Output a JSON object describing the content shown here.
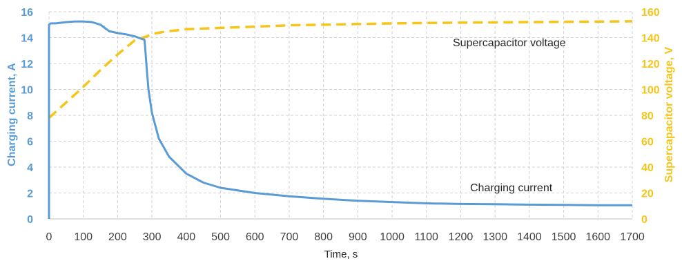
{
  "chart_data": {
    "type": "line",
    "xlabel": "Time, s",
    "ylabel_left": "Charging current, A",
    "ylabel_right": "Supercapacitor voltage, V",
    "xlim": [
      0,
      1700
    ],
    "ylim_left": [
      0,
      16
    ],
    "ylim_right": [
      0,
      160
    ],
    "x_ticks": [
      "0",
      "100",
      "200",
      "300",
      "400",
      "500",
      "600",
      "700",
      "800",
      "900",
      "1000",
      "1100",
      "1200",
      "1300",
      "1400",
      "1500",
      "1600",
      "1700"
    ],
    "y_left_ticks": [
      "0",
      "2",
      "4",
      "6",
      "8",
      "10",
      "12",
      "14",
      "16"
    ],
    "y_right_ticks": [
      "0",
      "20",
      "40",
      "60",
      "80",
      "100",
      "120",
      "140",
      "160"
    ],
    "grid": "dashed gridlines",
    "annotations": [
      "Supercapacitor voltage",
      "Charging current"
    ],
    "colors": {
      "current": "#5b9bd5",
      "voltage": "#f5c518"
    },
    "series": [
      {
        "axis": "left",
        "style": "solid",
        "x": [
          0,
          0,
          5,
          20,
          50,
          75,
          100,
          125,
          150,
          160,
          175,
          200,
          225,
          250,
          270,
          278,
          280,
          285,
          290,
          300,
          320,
          350,
          400,
          450,
          500,
          600,
          700,
          800,
          900,
          1000,
          1100,
          1200,
          1300,
          1400,
          1500,
          1600,
          1700
        ],
        "y": [
          0,
          15.0,
          15.1,
          15.1,
          15.2,
          15.25,
          15.25,
          15.2,
          15.0,
          14.8,
          14.5,
          14.35,
          14.25,
          14.1,
          13.9,
          13.85,
          13.3,
          11.5,
          10.0,
          8.2,
          6.2,
          4.8,
          3.5,
          2.8,
          2.4,
          2.0,
          1.75,
          1.55,
          1.4,
          1.3,
          1.2,
          1.15,
          1.13,
          1.1,
          1.08,
          1.05,
          1.05
        ]
      },
      {
        "axis": "right",
        "style": "dashed",
        "x": [
          0,
          50,
          100,
          150,
          200,
          250,
          285,
          300,
          350,
          400,
          500,
          600,
          700,
          800,
          900,
          1000,
          1100,
          1200,
          1300,
          1400,
          1500,
          1600,
          1700
        ],
        "y": [
          78,
          90,
          102,
          115,
          127,
          138,
          141,
          143,
          145,
          146.5,
          147.5,
          148.5,
          149.5,
          150,
          150.5,
          151,
          151.3,
          151.6,
          151.8,
          152,
          152.2,
          152.4,
          152.6
        ]
      }
    ]
  }
}
